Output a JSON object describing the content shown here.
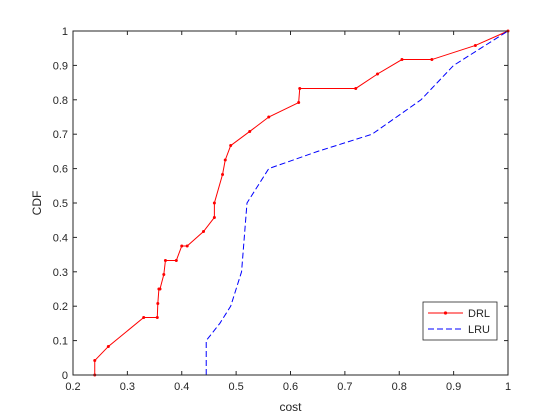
{
  "chart_data": {
    "type": "line",
    "title": "",
    "xlabel": "cost",
    "ylabel": "CDF",
    "xlim": [
      0.2,
      1
    ],
    "ylim": [
      0,
      1
    ],
    "xticks": [
      "0.2",
      "0.3",
      "0.4",
      "0.5",
      "0.6",
      "0.7",
      "0.8",
      "0.9",
      "1"
    ],
    "yticks": [
      "0",
      "0.1",
      "0.2",
      "0.3",
      "0.4",
      "0.5",
      "0.6",
      "0.7",
      "0.8",
      "0.9",
      "1"
    ],
    "grid": false,
    "legend_position": "bottom-right",
    "series": [
      {
        "name": "DRL",
        "color": "#ff0000",
        "line_style": "solid",
        "marker": "dot",
        "x": [
          0.24,
          0.24,
          0.265,
          0.33,
          0.355,
          0.356,
          0.358,
          0.36,
          0.367,
          0.37,
          0.39,
          0.4,
          0.41,
          0.44,
          0.46,
          0.46,
          0.475,
          0.48,
          0.49,
          0.525,
          0.56,
          0.615,
          0.617,
          0.72,
          0.76,
          0.805,
          0.86,
          0.94,
          1.0
        ],
        "y": [
          0.0,
          0.042,
          0.083,
          0.167,
          0.167,
          0.208,
          0.25,
          0.25,
          0.292,
          0.333,
          0.333,
          0.375,
          0.375,
          0.417,
          0.458,
          0.5,
          0.583,
          0.625,
          0.667,
          0.708,
          0.75,
          0.792,
          0.833,
          0.833,
          0.875,
          0.917,
          0.917,
          0.958,
          1.0
        ]
      },
      {
        "name": "LRU",
        "color": "#0000ff",
        "line_style": "dashed",
        "marker": "none",
        "x": [
          0.445,
          0.445,
          0.47,
          0.49,
          0.51,
          0.52,
          0.56,
          0.65,
          0.75,
          0.84,
          0.9,
          0.95,
          1.0
        ],
        "y": [
          0.0,
          0.1,
          0.15,
          0.2,
          0.3,
          0.5,
          0.6,
          0.65,
          0.7,
          0.8,
          0.9,
          0.95,
          1.0
        ]
      }
    ]
  }
}
